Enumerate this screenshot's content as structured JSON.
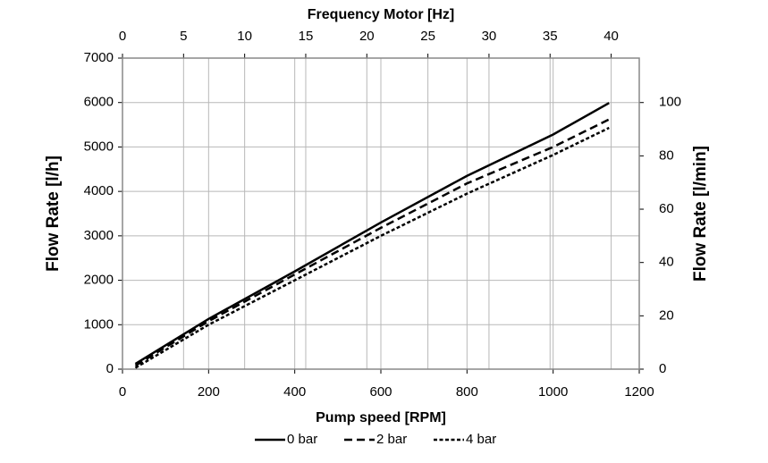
{
  "chart_data": {
    "type": "line",
    "xlabel": "Pump speed [RPM]",
    "x2label": "Frequency Motor [Hz]",
    "ylabel": "Flow Rate [l/h]",
    "y2label": "Flow Rate [l/min]",
    "xlim": [
      0,
      1200
    ],
    "xticks": [
      0,
      200,
      400,
      600,
      800,
      1000,
      1200
    ],
    "x2lim": [
      0,
      42.3
    ],
    "x2ticks": [
      0,
      5,
      10,
      15,
      20,
      25,
      30,
      35,
      40
    ],
    "ylim": [
      0,
      7000
    ],
    "yticks": [
      0,
      1000,
      2000,
      3000,
      4000,
      5000,
      6000,
      7000
    ],
    "y2lim": [
      0,
      116.67
    ],
    "y2ticks": [
      0,
      20,
      40,
      60,
      80,
      100
    ],
    "grid": true,
    "legend": "bottom",
    "series": [
      {
        "name": "0 bar",
        "color": "#000000",
        "dash": "solid",
        "x": [
          30,
          200,
          400,
          600,
          800,
          1000,
          1130
        ],
        "values": [
          120,
          1130,
          2200,
          3300,
          4350,
          5280,
          5990
        ]
      },
      {
        "name": "2 bar",
        "color": "#000000",
        "dash": "dashed",
        "x": [
          30,
          200,
          400,
          600,
          800,
          1000,
          1130
        ],
        "values": [
          80,
          1080,
          2130,
          3180,
          4180,
          5000,
          5620
        ]
      },
      {
        "name": "4 bar",
        "color": "#000000",
        "dash": "dotted",
        "x": [
          30,
          200,
          400,
          600,
          800,
          1000,
          1130
        ],
        "values": [
          30,
          1000,
          2000,
          3000,
          3950,
          4820,
          5430
        ]
      }
    ]
  }
}
